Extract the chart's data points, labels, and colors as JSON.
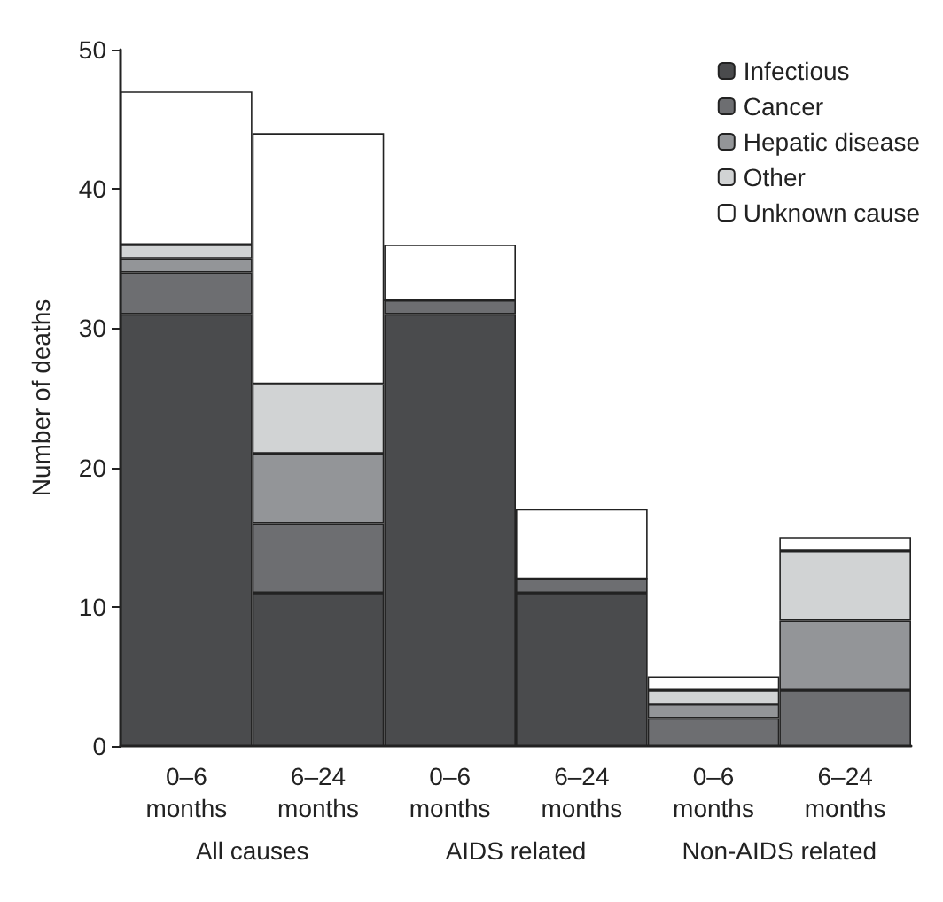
{
  "chart_data": {
    "type": "bar",
    "stacked": true,
    "ylabel": "Number of deaths",
    "categories": [
      "0–6\nmonths",
      "6–24\nmonths",
      "0–6\nmonths",
      "6–24\nmonths",
      "0–6\nmonths",
      "6–24\nmonths"
    ],
    "annotations": [
      "All causes",
      "AIDS related",
      "Non-AIDS related"
    ],
    "series": [
      {
        "name": "Infectious",
        "color": "#4a4b4d",
        "values": [
          31,
          11,
          31,
          11,
          0,
          0
        ]
      },
      {
        "name": "Cancer",
        "color": "#6d6e71",
        "values": [
          3,
          5,
          1,
          1,
          2,
          4
        ]
      },
      {
        "name": "Hepatic disease",
        "color": "#939598",
        "values": [
          1,
          5,
          0,
          0,
          1,
          5
        ]
      },
      {
        "name": "Other",
        "color": "#d1d3d4",
        "values": [
          1,
          5,
          0,
          0,
          1,
          5
        ]
      },
      {
        "name": "Unknown cause",
        "color": "#ffffff",
        "values": [
          11,
          18,
          4,
          5,
          1,
          1
        ]
      }
    ],
    "ylim": [
      0,
      50
    ],
    "yticks": [
      0,
      10,
      20,
      30,
      40,
      50
    ],
    "grid": false,
    "legend": "top right"
  }
}
